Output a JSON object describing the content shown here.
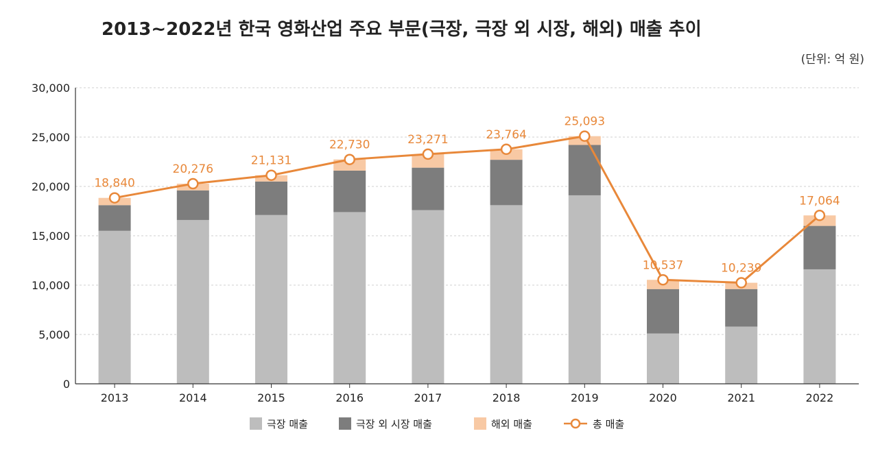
{
  "chart_data": {
    "type": "bar",
    "subtype": "stacked-bar-with-line",
    "title": "2013~2022년 한국 영화산업 주요 부문(극장, 극장 외 시장, 해외) 매출 추이",
    "unit_label": "(단위: 억 원)",
    "categories": [
      "2013",
      "2014",
      "2015",
      "2016",
      "2017",
      "2018",
      "2019",
      "2020",
      "2021",
      "2022"
    ],
    "series": [
      {
        "name": "극장 매출",
        "type": "bar",
        "color": "#bdbdbd",
        "values": [
          15500,
          16600,
          17100,
          17400,
          17600,
          18100,
          19100,
          5100,
          5800,
          11600
        ]
      },
      {
        "name": "극장 외 시장 매출",
        "type": "bar",
        "color": "#7d7d7d",
        "values": [
          2600,
          3000,
          3400,
          4200,
          4300,
          4600,
          5100,
          4500,
          3800,
          4400
        ]
      },
      {
        "name": "해외 매출",
        "type": "bar",
        "color": "#f8c9a4",
        "values": [
          740,
          676,
          631,
          1130,
          1371,
          1064,
          893,
          937,
          639,
          1064
        ]
      },
      {
        "name": "총 매출",
        "type": "line",
        "color": "#e8883a",
        "values": [
          18840,
          20276,
          21131,
          22730,
          23271,
          23764,
          25093,
          10537,
          10239,
          17064
        ]
      }
    ],
    "data_labels": [
      "18,840",
      "20,276",
      "21,131",
      "22,730",
      "23,271",
      "23,764",
      "25,093",
      "10,537",
      "10,239",
      "17,064"
    ],
    "ylim": [
      0,
      30000
    ],
    "yticks": [
      0,
      5000,
      10000,
      15000,
      20000,
      25000,
      30000
    ],
    "ytick_labels": [
      "0",
      "5,000",
      "10,000",
      "15,000",
      "20,000",
      "25,000",
      "30,000"
    ],
    "grid": true,
    "legend_position": "bottom"
  }
}
